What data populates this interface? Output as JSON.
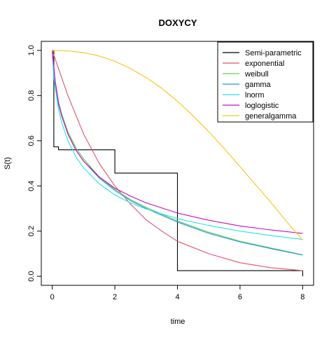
{
  "chart_data": {
    "type": "line",
    "title": "DOXYCY",
    "xlabel": "time",
    "ylabel": "S(t)",
    "xlim": [
      -0.35,
      8.35
    ],
    "ylim": [
      -0.04,
      1.04
    ],
    "xticks": [
      0,
      2,
      4,
      6,
      8
    ],
    "yticks": [
      0.0,
      0.2,
      0.4,
      0.6,
      0.8,
      1.0
    ],
    "xtick_labels": [
      "0",
      "2",
      "4",
      "6",
      "8"
    ],
    "ytick_labels": [
      "0.0",
      "0.2",
      "0.4",
      "0.6",
      "0.8",
      "1.0"
    ],
    "grid": false,
    "legend_position": "top-right",
    "series": [
      {
        "name": "Semi-parametric",
        "color": "#000000",
        "style": "step",
        "x": [
          0,
          0.05,
          0.05,
          0.2,
          0.2,
          2,
          2,
          4,
          4,
          8,
          8
        ],
        "y": [
          1.0,
          1.0,
          0.573,
          0.573,
          0.56,
          0.56,
          0.457,
          0.457,
          0.025,
          0.025,
          0.0
        ]
      },
      {
        "name": "exponential",
        "color": "#df536b",
        "style": "line",
        "x": [
          0,
          0.5,
          1,
          1.5,
          2,
          2.5,
          3,
          3.5,
          4,
          5,
          6,
          7,
          8
        ],
        "y": [
          1.0,
          0.8,
          0.63,
          0.5,
          0.4,
          0.32,
          0.25,
          0.2,
          0.155,
          0.1,
          0.06,
          0.038,
          0.025
        ]
      },
      {
        "name": "weibull",
        "color": "#61d04f",
        "style": "line",
        "x": [
          0,
          0.05,
          0.1,
          0.2,
          0.3,
          0.5,
          0.75,
          1,
          1.5,
          2,
          2.5,
          3,
          4,
          5,
          6,
          7,
          8
        ],
        "y": [
          1.0,
          0.89,
          0.84,
          0.77,
          0.72,
          0.64,
          0.57,
          0.52,
          0.44,
          0.385,
          0.34,
          0.305,
          0.245,
          0.195,
          0.155,
          0.125,
          0.095
        ]
      },
      {
        "name": "gamma",
        "color": "#2297e6",
        "style": "line",
        "x": [
          0,
          0.05,
          0.1,
          0.2,
          0.3,
          0.5,
          0.75,
          1,
          1.5,
          2,
          2.5,
          3,
          4,
          5,
          6,
          7,
          8
        ],
        "y": [
          1.0,
          0.88,
          0.83,
          0.76,
          0.71,
          0.63,
          0.56,
          0.51,
          0.435,
          0.38,
          0.335,
          0.3,
          0.24,
          0.19,
          0.152,
          0.122,
          0.094
        ]
      },
      {
        "name": "lnorm",
        "color": "#28e2e5",
        "style": "line",
        "x": [
          0,
          0.05,
          0.1,
          0.2,
          0.3,
          0.5,
          0.75,
          1,
          1.5,
          2,
          2.5,
          3,
          4,
          5,
          6,
          7,
          8
        ],
        "y": [
          1.0,
          0.9,
          0.83,
          0.74,
          0.68,
          0.6,
          0.53,
          0.48,
          0.41,
          0.36,
          0.325,
          0.298,
          0.255,
          0.225,
          0.2,
          0.18,
          0.163
        ]
      },
      {
        "name": "loglogistic",
        "color": "#cd0bbc",
        "style": "line",
        "x": [
          0,
          0.05,
          0.1,
          0.2,
          0.3,
          0.5,
          0.75,
          1,
          1.5,
          2,
          2.5,
          3,
          4,
          5,
          6,
          7,
          8
        ],
        "y": [
          1.0,
          0.93,
          0.86,
          0.77,
          0.71,
          0.63,
          0.56,
          0.51,
          0.44,
          0.39,
          0.355,
          0.325,
          0.28,
          0.248,
          0.223,
          0.205,
          0.19
        ]
      },
      {
        "name": "generalgamma",
        "color": "#f5c710",
        "style": "line",
        "x": [
          0,
          0.5,
          1,
          1.5,
          2,
          2.5,
          3,
          3.5,
          4,
          4.5,
          5,
          5.5,
          6,
          6.5,
          7,
          7.5,
          8
        ],
        "y": [
          1.0,
          0.998,
          0.99,
          0.975,
          0.952,
          0.92,
          0.88,
          0.832,
          0.775,
          0.71,
          0.64,
          0.565,
          0.485,
          0.405,
          0.325,
          0.24,
          0.16
        ]
      }
    ]
  }
}
